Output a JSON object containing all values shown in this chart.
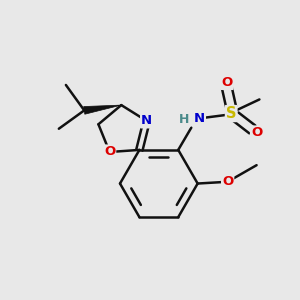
{
  "bg_color": "#e8e8e8",
  "bond_color": "#111111",
  "bond_lw": 1.8,
  "dbl_off": 0.09,
  "colors": {
    "O": "#dd0000",
    "N": "#0000cc",
    "S": "#c8b800",
    "H": "#4a8a8a",
    "C": "#111111"
  },
  "afs": 9.5
}
